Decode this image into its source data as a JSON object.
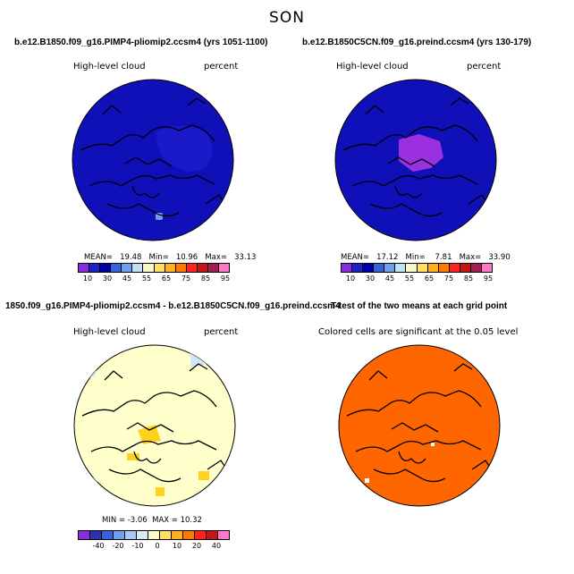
{
  "season": "SON",
  "panels": {
    "tl": {
      "title": "b.e12.B1850.f09_g16.PIMP4-pliomip2.ccsm4 (yrs 1051-1100)",
      "var_label": "High-level cloud",
      "units": "percent",
      "stats": "MEAN=   19.48   Min=   10.96   Max=   33.13"
    },
    "tr": {
      "title": "b.e12.B1850C5CN.f09_g16.preind.ccsm4 (yrs 130-179)",
      "var_label": "High-level cloud",
      "units": "percent",
      "stats": "MEAN=   17.12   Min=    7.81   Max=   33.90"
    },
    "bl": {
      "title": "1850.f09_g16.PIMP4-pliomip2.ccsm4 - b.e12.B1850C5CN.f09_g16.preind.ccsm4",
      "var_label": "High-level cloud",
      "units": "percent",
      "stats": "MIN = -3.06  MAX = 10.32"
    },
    "br": {
      "title": "T-test of the two means at each grid point",
      "subtitle": "Colored cells are significant at the 0.05 level"
    }
  },
  "colorbar_abs": {
    "colors": [
      "#8a2be2",
      "#2020c8",
      "#0000aa",
      "#3a62d8",
      "#6ea0f0",
      "#bfe2f7",
      "#f7f7c8",
      "#ffe060",
      "#ffb020",
      "#ff7a00",
      "#ff2020",
      "#c81414",
      "#a01e50",
      "#ff78c8"
    ],
    "tick_labels": [
      "10",
      "30",
      "45",
      "55",
      "65",
      "75",
      "85",
      "95"
    ]
  },
  "colorbar_diff": {
    "colors": [
      "#8a2be2",
      "#3030b0",
      "#3a62d8",
      "#6ea0f0",
      "#a8c8f8",
      "#d8ecf8",
      "#fafac8",
      "#ffe060",
      "#ffb020",
      "#ff7a00",
      "#ff2020",
      "#c81414",
      "#ff78c8"
    ],
    "tick_labels": [
      "-40",
      "-20",
      "-10",
      "0",
      "10",
      "20",
      "40"
    ]
  },
  "map_colors": {
    "tl_fill": "#1010b8",
    "tr_fill": "#1010b8",
    "tr_patch": "#9b30e0",
    "bl_fill": "#ffffcc",
    "bl_blue": "#cfe8f7",
    "bl_yellow": "#ffd21e",
    "br_fill": "#ff6600"
  }
}
